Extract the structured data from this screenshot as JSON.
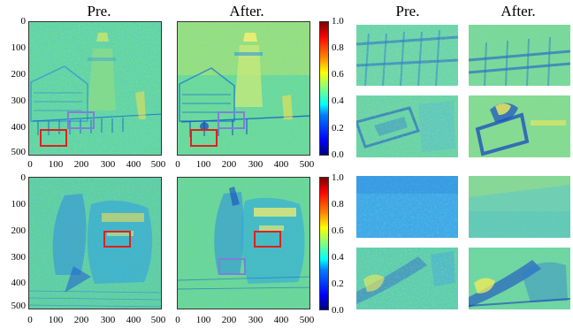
{
  "titles": {
    "left_pre": "Pre.",
    "left_after": "After.",
    "right_pre": "Pre.",
    "right_after": "After."
  },
  "axis_ticks": {
    "y": [
      "0",
      "100",
      "200",
      "300",
      "400",
      "500"
    ],
    "x": [
      "0",
      "100",
      "200",
      "300",
      "400",
      "500"
    ],
    "colorbar": [
      "1.0",
      "0.8",
      "0.6",
      "0.4",
      "0.2",
      "0.0"
    ]
  },
  "colors": {
    "red_box": "#e0201c",
    "purple_box": "#7f7fd8",
    "base_field": "#5fd79a"
  },
  "colorbar_range": [
    0.0,
    1.0
  ]
}
